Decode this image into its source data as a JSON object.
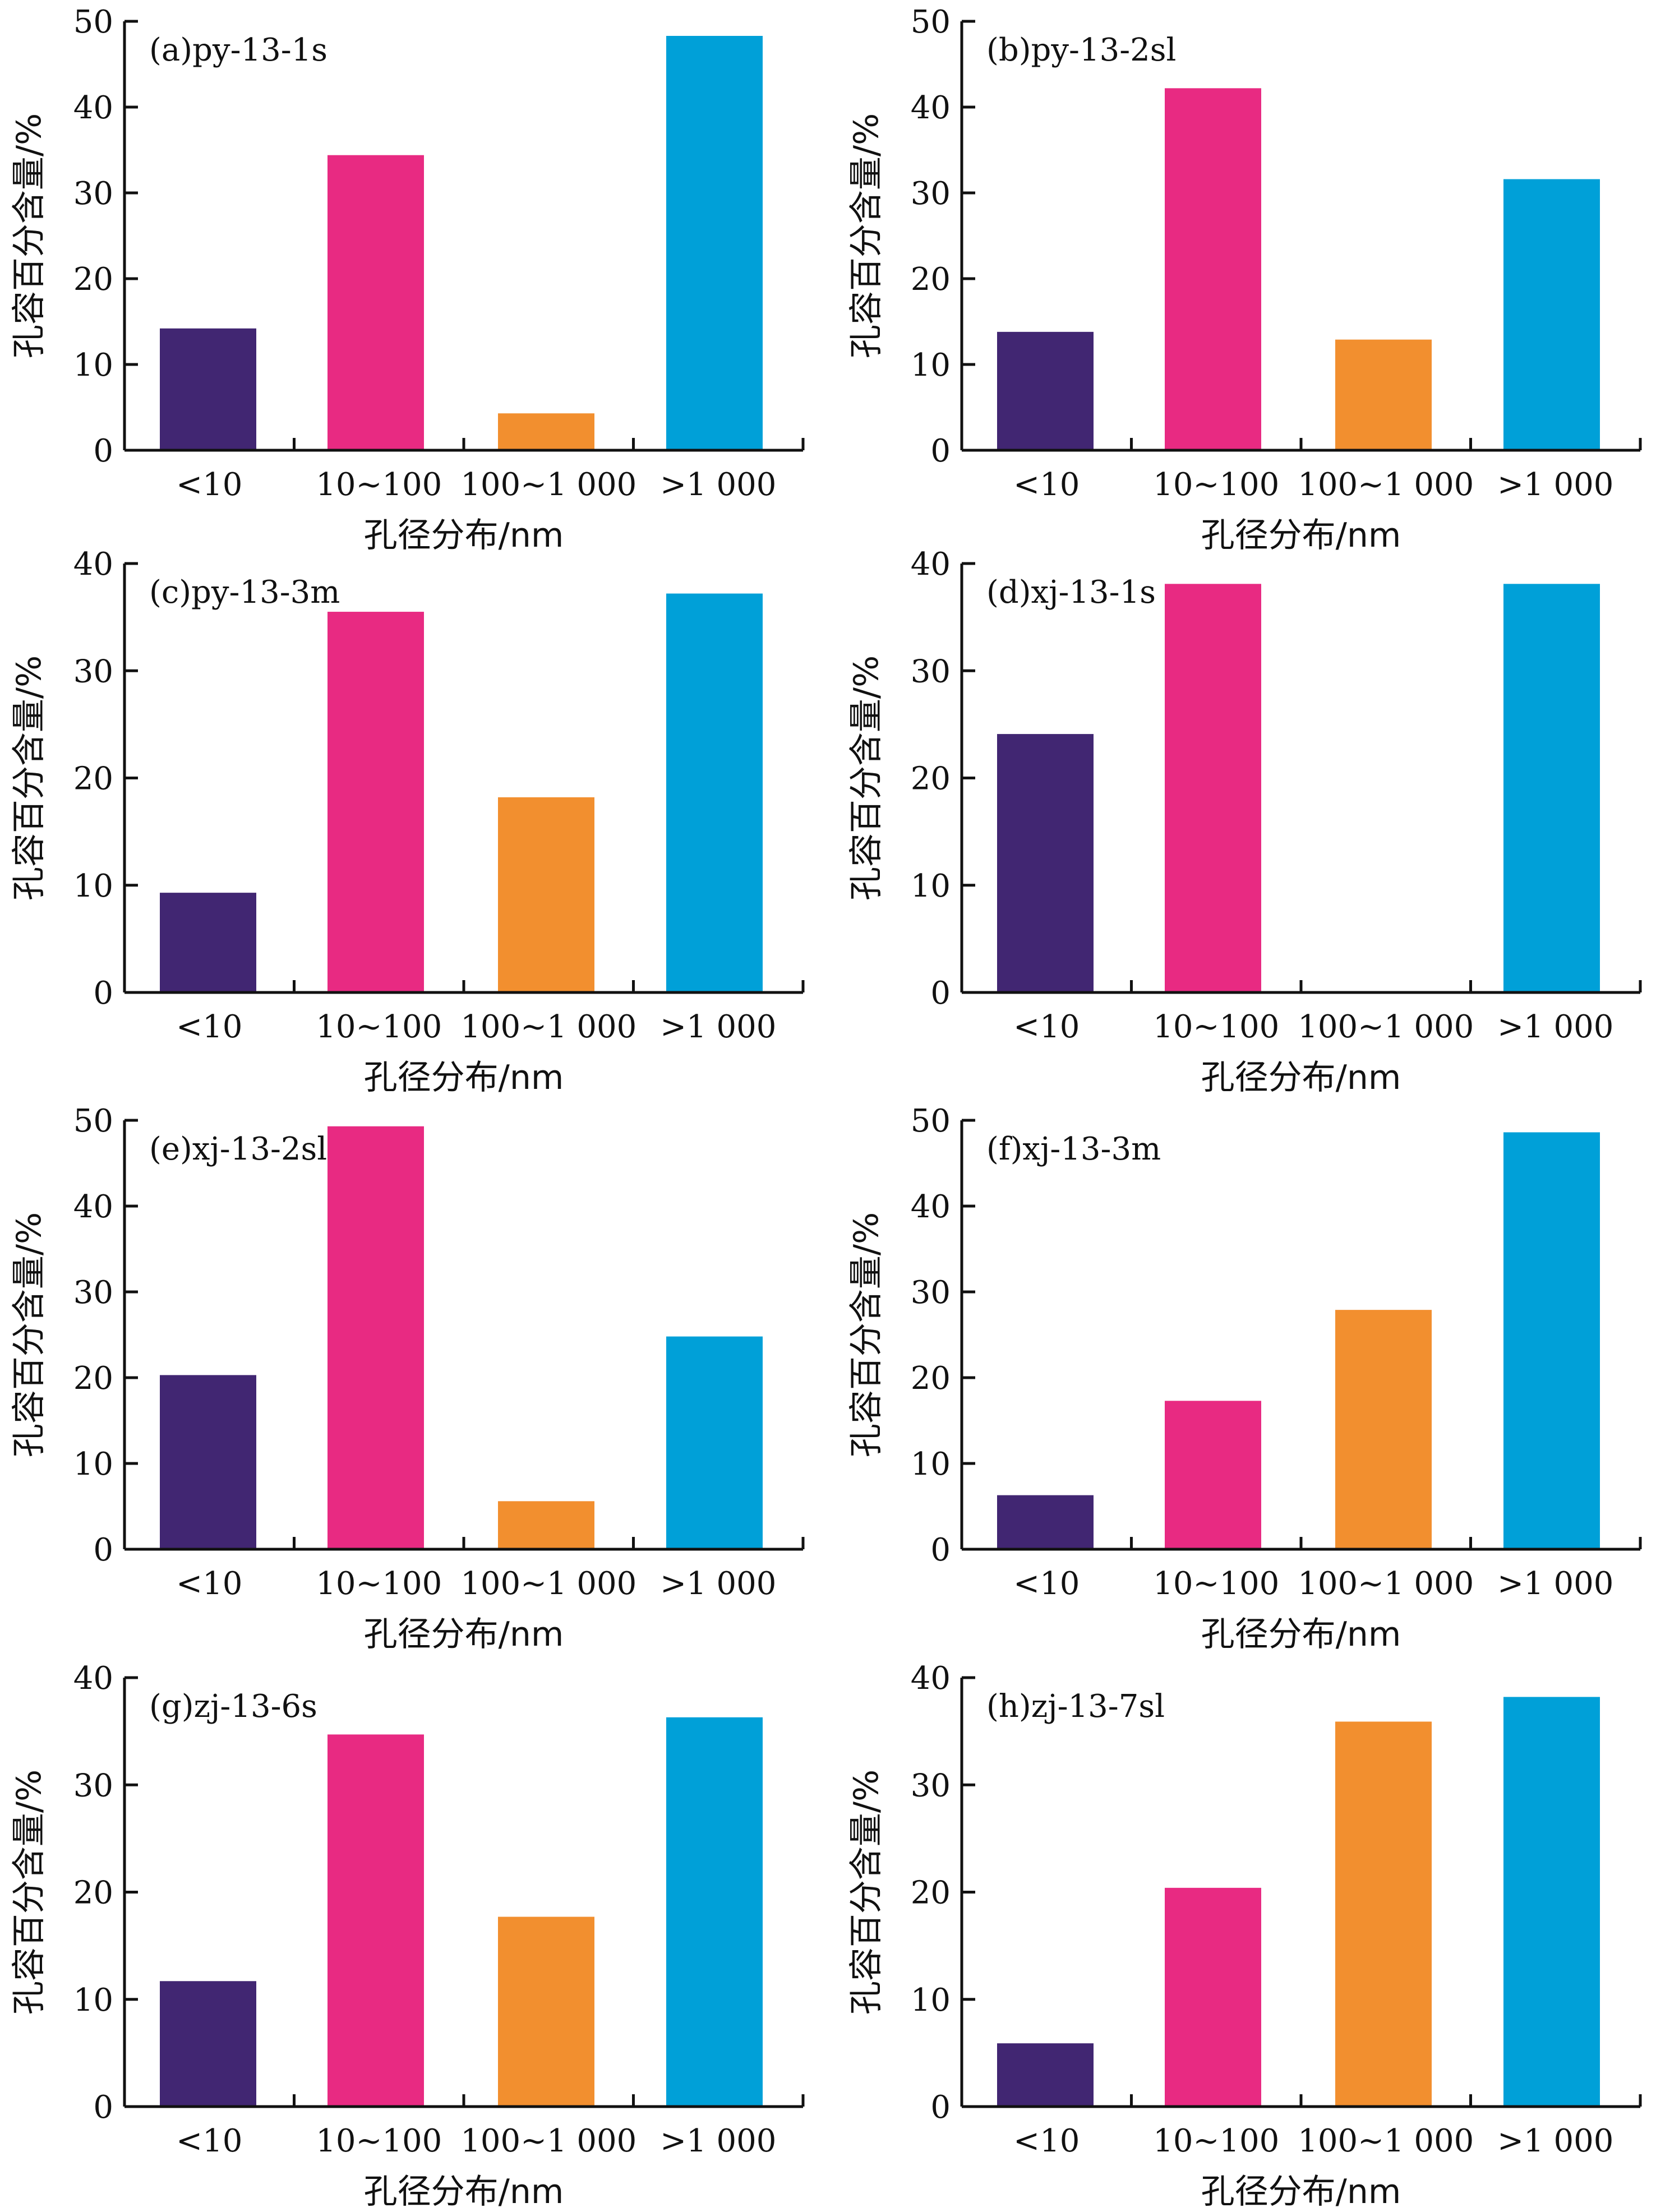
{
  "charts_common": {
    "categories": [
      "<10",
      "10~100",
      "100~1 000",
      ">1 000"
    ],
    "xlabel": "孔径分布/nm",
    "ylabel": "孔容百分含量/%",
    "colors": [
      "#412672",
      "#e82a82",
      "#f28f2f",
      "#00a0d8"
    ]
  },
  "chart_data": [
    {
      "type": "bar",
      "title": "(a)py-13-1s",
      "categories": [
        "<10",
        "10~100",
        "100~1 000",
        ">1 000"
      ],
      "values": [
        14.2,
        34.4,
        4.3,
        48.3
      ],
      "ylim": [
        0,
        50
      ],
      "yticks": [
        "0",
        "10",
        "20",
        "30",
        "40",
        "50"
      ],
      "xlabel": "孔径分布/nm",
      "ylabel": "孔容百分含量/%"
    },
    {
      "type": "bar",
      "title": "(b)py-13-2sl",
      "categories": [
        "<10",
        "10~100",
        "100~1 000",
        ">1 000"
      ],
      "values": [
        13.8,
        42.2,
        12.9,
        31.6
      ],
      "ylim": [
        0,
        50
      ],
      "yticks": [
        "0",
        "10",
        "20",
        "30",
        "40",
        "50"
      ],
      "xlabel": "孔径分布/nm",
      "ylabel": "孔容百分含量/%"
    },
    {
      "type": "bar",
      "title": "(c)py-13-3m",
      "categories": [
        "<10",
        "10~100",
        "100~1 000",
        ">1 000"
      ],
      "values": [
        9.3,
        35.5,
        18.2,
        37.2
      ],
      "ylim": [
        0,
        40
      ],
      "yticks": [
        "0",
        "10",
        "20",
        "30",
        "40"
      ],
      "xlabel": "孔径分布/nm",
      "ylabel": "孔容百分含量/%"
    },
    {
      "type": "bar",
      "title": "(d)xj-13-1s",
      "categories": [
        "<10",
        "10~100",
        "100~1 000",
        ">1 000"
      ],
      "values": [
        24.1,
        38.1,
        0,
        38.1
      ],
      "ylim": [
        0,
        40
      ],
      "yticks": [
        "0",
        "10",
        "20",
        "30",
        "40"
      ],
      "xlabel": "孔径分布/nm",
      "ylabel": "孔容百分含量/%"
    },
    {
      "type": "bar",
      "title": "(e)xj-13-2sl",
      "categories": [
        "<10",
        "10~100",
        "100~1 000",
        ">1 000"
      ],
      "values": [
        20.3,
        49.3,
        5.6,
        24.8
      ],
      "ylim": [
        0,
        50
      ],
      "yticks": [
        "0",
        "10",
        "20",
        "30",
        "40",
        "50"
      ],
      "xlabel": "孔径分布/nm",
      "ylabel": "孔容百分含量/%"
    },
    {
      "type": "bar",
      "title": "(f)xj-13-3m",
      "categories": [
        "<10",
        "10~100",
        "100~1 000",
        ">1 000"
      ],
      "values": [
        6.3,
        17.3,
        27.9,
        48.6
      ],
      "ylim": [
        0,
        50
      ],
      "yticks": [
        "0",
        "10",
        "20",
        "30",
        "40",
        "50"
      ],
      "xlabel": "孔径分布/nm",
      "ylabel": "孔容百分含量/%"
    },
    {
      "type": "bar",
      "title": "(g)zj-13-6s",
      "categories": [
        "<10",
        "10~100",
        "100~1 000",
        ">1 000"
      ],
      "values": [
        11.7,
        34.7,
        17.7,
        36.3
      ],
      "ylim": [
        0,
        40
      ],
      "yticks": [
        "0",
        "10",
        "20",
        "30",
        "40"
      ],
      "xlabel": "孔径分布/nm",
      "ylabel": "孔容百分含量/%"
    },
    {
      "type": "bar",
      "title": "(h)zj-13-7sl",
      "categories": [
        "<10",
        "10~100",
        "100~1 000",
        ">1 000"
      ],
      "values": [
        5.9,
        20.4,
        35.9,
        38.2
      ],
      "ylim": [
        0,
        40
      ],
      "yticks": [
        "0",
        "10",
        "20",
        "30",
        "40"
      ],
      "xlabel": "孔径分布/nm",
      "ylabel": "孔容百分含量/%"
    }
  ]
}
